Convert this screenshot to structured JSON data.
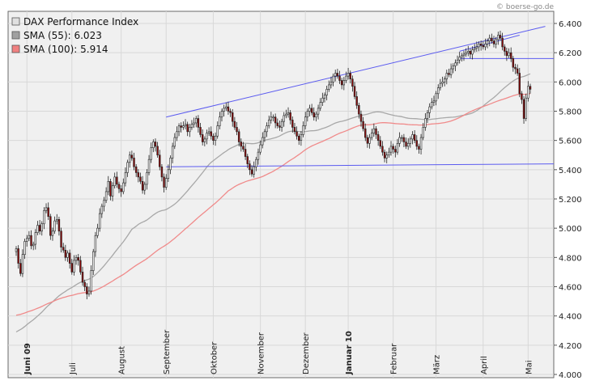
{
  "credit": "© boerse-go.de",
  "chart_data": {
    "type": "candlestick",
    "title": "",
    "legend": [
      {
        "name": "DAX Performance Index",
        "color": "#e0e0e0"
      },
      {
        "name": "SMA (55): 6.023",
        "color": "#a0a0a0"
      },
      {
        "name": "SMA (100): 5.914",
        "color": "#f08080"
      }
    ],
    "legend_position": "top-left",
    "ylim": [
      4000,
      6500
    ],
    "y_ticks": [
      "6.400",
      "6.200",
      "6.000",
      "5.800",
      "5.600",
      "5.400",
      "5.200",
      "5.000",
      "4.800",
      "4.600",
      "4.400",
      "4.200",
      "4.000"
    ],
    "y_tick_values": [
      6400,
      6200,
      6000,
      5800,
      5600,
      5400,
      5200,
      5000,
      4800,
      4600,
      4400,
      4200,
      4000
    ],
    "x_labels": [
      {
        "label": "Juni 09",
        "index": 5,
        "bold": true
      },
      {
        "label": "Juli",
        "index": 26,
        "bold": false
      },
      {
        "label": "August",
        "index": 49,
        "bold": false
      },
      {
        "label": "September",
        "index": 70,
        "bold": false
      },
      {
        "label": "Oktober",
        "index": 92,
        "bold": false
      },
      {
        "label": "November",
        "index": 114,
        "bold": false
      },
      {
        "label": "Dezember",
        "index": 135,
        "bold": false
      },
      {
        "label": "Januar 10",
        "index": 155,
        "bold": true
      },
      {
        "label": "Februar",
        "index": 176,
        "bold": false
      },
      {
        "label": "März",
        "index": 196,
        "bold": false
      },
      {
        "label": "April",
        "index": 218,
        "bold": false
      },
      {
        "label": "Mai",
        "index": 239,
        "bold": false
      }
    ],
    "close": [
      4860,
      4760,
      4690,
      4820,
      4910,
      4930,
      4950,
      4880,
      4890,
      4970,
      5020,
      4980,
      5030,
      5120,
      5140,
      5080,
      4950,
      4980,
      5050,
      5060,
      4980,
      4870,
      4850,
      4800,
      4830,
      4760,
      4700,
      4780,
      4800,
      4780,
      4700,
      4630,
      4600,
      4550,
      4570,
      4710,
      4840,
      4950,
      5000,
      5100,
      5150,
      5190,
      5250,
      5320,
      5220,
      5290,
      5350,
      5300,
      5270,
      5250,
      5310,
      5380,
      5450,
      5500,
      5480,
      5420,
      5380,
      5350,
      5320,
      5260,
      5300,
      5380,
      5470,
      5550,
      5590,
      5560,
      5500,
      5420,
      5350,
      5280,
      5340,
      5400,
      5480,
      5560,
      5620,
      5660,
      5700,
      5690,
      5700,
      5710,
      5660,
      5690,
      5710,
      5720,
      5750,
      5690,
      5640,
      5590,
      5610,
      5650,
      5660,
      5630,
      5600,
      5630,
      5700,
      5760,
      5800,
      5820,
      5830,
      5800,
      5790,
      5730,
      5690,
      5660,
      5590,
      5560,
      5540,
      5490,
      5440,
      5400,
      5370,
      5420,
      5470,
      5520,
      5570,
      5620,
      5660,
      5700,
      5740,
      5760,
      5760,
      5720,
      5700,
      5690,
      5730,
      5770,
      5780,
      5790,
      5740,
      5690,
      5660,
      5630,
      5600,
      5640,
      5700,
      5760,
      5800,
      5820,
      5790,
      5760,
      5780,
      5820,
      5860,
      5890,
      5910,
      5950,
      5980,
      6000,
      6040,
      6060,
      6040,
      6010,
      5980,
      6010,
      6040,
      6060,
      6020,
      5970,
      5900,
      5840,
      5780,
      5730,
      5680,
      5620,
      5580,
      5620,
      5650,
      5680,
      5640,
      5600,
      5560,
      5520,
      5480,
      5500,
      5520,
      5560,
      5540,
      5520,
      5580,
      5620,
      5620,
      5590,
      5560,
      5580,
      5610,
      5640,
      5600,
      5560,
      5540,
      5620,
      5690,
      5750,
      5790,
      5830,
      5860,
      5870,
      5920,
      5960,
      5990,
      6000,
      6020,
      6060,
      6050,
      6090,
      6110,
      6130,
      6150,
      6170,
      6180,
      6190,
      6200,
      6210,
      6190,
      6220,
      6230,
      6240,
      6260,
      6250,
      6240,
      6260,
      6280,
      6300,
      6280,
      6260,
      6290,
      6320,
      6300,
      6240,
      6210,
      6180,
      6200,
      6160,
      6100,
      6090,
      6060,
      5920,
      5880,
      5750,
      5890,
      5970,
      5950
    ],
    "sma55_start": 4280,
    "sma55_end": 6023,
    "sma100_start": 4400,
    "sma100_end": 5914,
    "trendlines": [
      {
        "from_index": 70,
        "from_value": 5760,
        "to_index": 247,
        "to_value": 6380
      },
      {
        "from_index": 70,
        "from_value": 5420,
        "to_index": 260,
        "to_value": 5440
      },
      {
        "from_index": 207,
        "from_value": 6160,
        "to_index": 255,
        "to_value": 6160
      },
      {
        "from_index": 207,
        "from_value": 6210,
        "to_index": 235,
        "to_value": 6320
      }
    ]
  }
}
